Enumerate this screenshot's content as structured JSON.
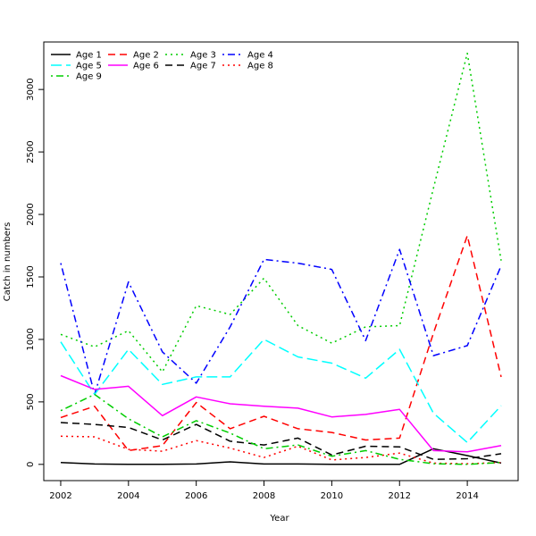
{
  "chart_data": {
    "type": "line",
    "title": "",
    "xlabel": "Year",
    "ylabel": "Catch in numbers",
    "xlim": [
      2001.5,
      2015.5
    ],
    "ylim": [
      -130,
      3380
    ],
    "x_ticks": [
      2002,
      2004,
      2006,
      2008,
      2010,
      2012,
      2014
    ],
    "y_ticks": [
      0,
      500,
      1000,
      1500,
      2000,
      2500,
      3000
    ],
    "grid": false,
    "legend_position": "top-left",
    "x": [
      2002,
      2003,
      2004,
      2005,
      2006,
      2007,
      2008,
      2009,
      2010,
      2011,
      2012,
      2013,
      2014,
      2015
    ],
    "series": [
      {
        "name": "Age 1",
        "color": "#000000",
        "dash": "solid",
        "values": [
          15,
          3,
          0,
          0,
          3,
          20,
          3,
          3,
          0,
          0,
          0,
          125,
          70,
          10
        ]
      },
      {
        "name": "Age 2",
        "color": "#ff0000",
        "dash": "dashed",
        "values": [
          375,
          465,
          110,
          150,
          495,
          285,
          385,
          285,
          255,
          195,
          210,
          1050,
          1830,
          700
        ]
      },
      {
        "name": "Age 3",
        "color": "#00cd00",
        "dash": "dotted",
        "values": [
          1040,
          940,
          1070,
          740,
          1270,
          1200,
          1490,
          1110,
          970,
          1100,
          1110,
          2210,
          3290,
          1630
        ]
      },
      {
        "name": "Age 4",
        "color": "#0000ff",
        "dash": "dotdash",
        "values": [
          1610,
          560,
          1460,
          900,
          650,
          1100,
          1640,
          1610,
          1560,
          990,
          1720,
          870,
          950,
          1590
        ]
      },
      {
        "name": "Age 5",
        "color": "#00ffff",
        "dash": "longdash",
        "values": [
          980,
          560,
          920,
          640,
          700,
          700,
          1000,
          860,
          810,
          690,
          920,
          410,
          175,
          470
        ]
      },
      {
        "name": "Age 6",
        "color": "#ff00ff",
        "dash": "solid",
        "values": [
          710,
          600,
          625,
          390,
          540,
          485,
          465,
          450,
          380,
          400,
          440,
          110,
          100,
          150
        ]
      },
      {
        "name": "Age 7",
        "color": "#000000",
        "dash": "dashed",
        "values": [
          335,
          320,
          295,
          195,
          320,
          185,
          155,
          210,
          75,
          145,
          140,
          40,
          45,
          85
        ]
      },
      {
        "name": "Age 8",
        "color": "#ff0000",
        "dash": "dotted",
        "values": [
          225,
          220,
          120,
          105,
          190,
          130,
          55,
          145,
          35,
          55,
          90,
          10,
          5,
          15
        ]
      },
      {
        "name": "Age 9",
        "color": "#00cd00",
        "dash": "dotdash",
        "values": [
          430,
          560,
          365,
          220,
          350,
          250,
          125,
          155,
          65,
          110,
          40,
          5,
          0,
          15
        ]
      }
    ]
  }
}
